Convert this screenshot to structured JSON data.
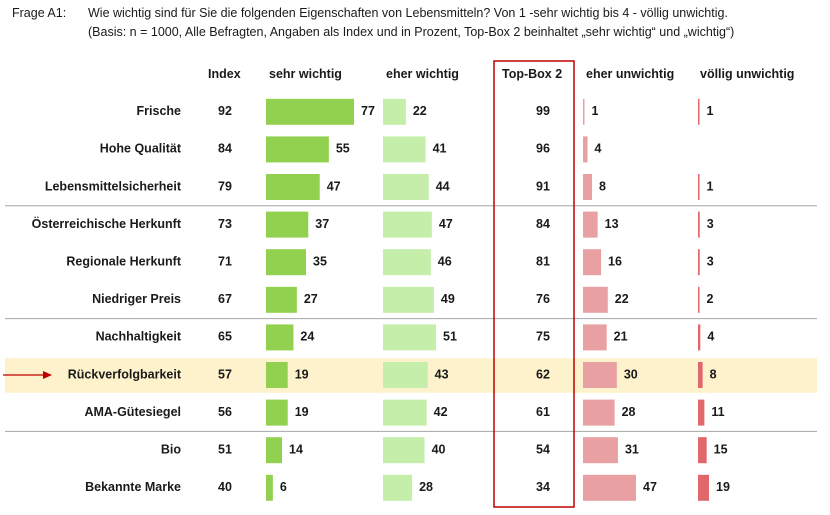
{
  "question": {
    "label": "Frage A1:",
    "text": "Wie wichtig sind für Sie die folgenden Eigenschaften von Lebensmitteln?  Von 1 -sehr wichtig bis 4 - völlig unwichtig.",
    "basis": "(Basis: n = 1000, Alle Befragten, Angaben als Index und in Prozent, Top-Box 2 beinhaltet „sehr wichtig“ und „wichtig“)"
  },
  "chart_data": {
    "type": "bar",
    "columns": {
      "index": "Index",
      "sehr": "sehr wichtig",
      "eher": "eher wichtig",
      "topbox": "Top-Box 2",
      "eherun": "eher unwichtig",
      "voellig": "völlig unwichtig"
    },
    "categories": [
      "Frische",
      "Hohe Qualität",
      "Lebensmittelsicherheit",
      "Österreichische Herkunft",
      "Regionale Herkunft",
      "Niedriger Preis",
      "Nachhaltigkeit",
      "Rückverfolgbarkeit",
      "AMA-Gütesiegel",
      "Bio",
      "Bekannte Marke"
    ],
    "index": [
      92,
      84,
      79,
      73,
      71,
      67,
      65,
      57,
      56,
      51,
      40
    ],
    "topbox": [
      99,
      96,
      91,
      84,
      81,
      76,
      75,
      62,
      61,
      54,
      34
    ],
    "series": [
      {
        "key": "sehr",
        "values": [
          77,
          55,
          47,
          37,
          35,
          27,
          24,
          19,
          19,
          14,
          6
        ],
        "color": "#92d050"
      },
      {
        "key": "eher",
        "values": [
          22,
          41,
          44,
          47,
          46,
          49,
          51,
          43,
          42,
          40,
          28
        ],
        "color": "#c4eeaa"
      },
      {
        "key": "eherun",
        "values": [
          1,
          4,
          8,
          13,
          16,
          22,
          21,
          30,
          28,
          31,
          47
        ],
        "color": "#e8a0a2"
      },
      {
        "key": "voellig",
        "values": [
          1,
          null,
          1,
          3,
          3,
          2,
          4,
          8,
          11,
          15,
          19
        ],
        "color": "#e0686c"
      }
    ],
    "highlight_category": "Rückverfolgbarkeit",
    "highlight_color": "#fdf2cc",
    "topbox_border_color": "#c00000",
    "separators_after": [
      "Lebensmittelsicherheit",
      "Niedriger Preis",
      "AMA-Gütesiegel"
    ]
  }
}
